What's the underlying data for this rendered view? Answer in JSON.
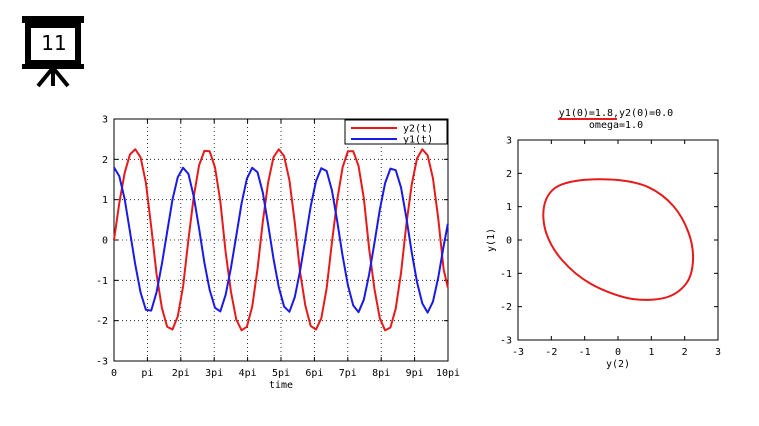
{
  "slide": {
    "number": "11"
  },
  "colors": {
    "y1": "#1a1ae6",
    "y2": "#e61a1a",
    "grid": "#000000"
  },
  "chart_data": [
    {
      "type": "line",
      "title": "",
      "xlabel": "time",
      "ylabel": "",
      "xlim": [
        0,
        31.4159
      ],
      "ylim": [
        -3,
        3
      ],
      "xticks": [
        {
          "value": 0,
          "label": "0"
        },
        {
          "value": 3.14159,
          "label": "pi"
        },
        {
          "value": 6.28319,
          "label": "2pi"
        },
        {
          "value": 9.42478,
          "label": "3pi"
        },
        {
          "value": 12.56637,
          "label": "4pi"
        },
        {
          "value": 15.70796,
          "label": "5pi"
        },
        {
          "value": 18.84956,
          "label": "6pi"
        },
        {
          "value": 21.99115,
          "label": "7pi"
        },
        {
          "value": 25.13274,
          "label": "8pi"
        },
        {
          "value": 28.27433,
          "label": "9pi"
        },
        {
          "value": 31.41593,
          "label": "10pi"
        }
      ],
      "yticks": [
        "-3",
        "-2",
        "-1",
        "0",
        "1",
        "2",
        "3"
      ],
      "grid": true,
      "legend": "top-right",
      "series": [
        {
          "name": "y2(t)",
          "color": "#e61a1a",
          "x": [
            0,
            0.5,
            1,
            1.5,
            2,
            2.5,
            3,
            3.5,
            4,
            4.5,
            5,
            5.5,
            6,
            6.5,
            7,
            7.5,
            8,
            8.5,
            9,
            9.5,
            10,
            10.5,
            11,
            11.5,
            12,
            12.5,
            13,
            13.5,
            14,
            14.5,
            15,
            15.5,
            16,
            16.5,
            17,
            17.5,
            18,
            18.5,
            19,
            19.5,
            20,
            20.5,
            21,
            21.5,
            22,
            22.5,
            23,
            23.5,
            24,
            24.5,
            25,
            25.5,
            26,
            26.5,
            27,
            27.5,
            28,
            28.5,
            29,
            29.5,
            30,
            30.5,
            31,
            31.4
          ],
          "values": [
            0.0,
            0.92,
            1.66,
            2.12,
            2.25,
            2.05,
            1.42,
            0.33,
            -0.84,
            -1.68,
            -2.15,
            -2.22,
            -1.89,
            -1.15,
            0.01,
            1.07,
            1.85,
            2.21,
            2.2,
            1.8,
            0.96,
            -0.3,
            -1.28,
            -1.97,
            -2.24,
            -2.15,
            -1.65,
            -0.72,
            0.46,
            1.43,
            2.05,
            2.25,
            2.08,
            1.48,
            0.44,
            -0.79,
            -1.63,
            -2.13,
            -2.22,
            -1.94,
            -1.2,
            -0.06,
            1.0,
            1.8,
            2.2,
            2.2,
            1.84,
            1.03,
            -0.22,
            -1.22,
            -1.94,
            -2.24,
            -2.17,
            -1.7,
            -0.81,
            0.39,
            1.37,
            2.02,
            2.25,
            2.1,
            1.53,
            0.53,
            -0.72,
            -1.18
          ]
        },
        {
          "name": "y1(t)",
          "color": "#1a1ae6",
          "x": [
            0,
            0.5,
            1,
            1.5,
            2,
            2.5,
            3,
            3.5,
            4,
            4.5,
            5,
            5.5,
            6,
            6.5,
            7,
            7.5,
            8,
            8.5,
            9,
            9.5,
            10,
            10.5,
            11,
            11.5,
            12,
            12.5,
            13,
            13.5,
            14,
            14.5,
            15,
            15.5,
            16,
            16.5,
            17,
            17.5,
            18,
            18.5,
            19,
            19.5,
            20,
            20.5,
            21,
            21.5,
            22,
            22.5,
            23,
            23.5,
            24,
            24.5,
            25,
            25.5,
            26,
            26.5,
            27,
            27.5,
            28,
            28.5,
            29,
            29.5,
            30,
            30.5,
            31,
            31.4
          ],
          "values": [
            1.8,
            1.58,
            1.02,
            0.21,
            -0.61,
            -1.3,
            -1.73,
            -1.75,
            -1.3,
            -0.6,
            0.2,
            1.0,
            1.56,
            1.79,
            1.64,
            1.08,
            0.29,
            -0.56,
            -1.24,
            -1.68,
            -1.77,
            -1.36,
            -0.69,
            0.1,
            0.91,
            1.52,
            1.79,
            1.68,
            1.17,
            0.38,
            -0.46,
            -1.17,
            -1.65,
            -1.78,
            -1.42,
            -0.77,
            0.02,
            0.83,
            1.46,
            1.78,
            1.71,
            1.23,
            0.46,
            -0.39,
            -1.12,
            -1.62,
            -1.79,
            -1.48,
            -0.85,
            -0.07,
            0.75,
            1.41,
            1.77,
            1.73,
            1.3,
            0.55,
            -0.3,
            -1.04,
            -1.57,
            -1.8,
            -1.53,
            -0.93,
            -0.16,
            0.4
          ]
        }
      ]
    },
    {
      "type": "line",
      "title": "y1(0)=1.8,y2(0)=0.0",
      "subtitle": "omega=1.0",
      "xlabel": "y(2)",
      "ylabel": "y(1)",
      "xlim": [
        -3,
        3
      ],
      "ylim": [
        -3,
        3
      ],
      "xticks": [
        "-3",
        "-2",
        "-1",
        "0",
        "1",
        "2",
        "3"
      ],
      "yticks": [
        "-3",
        "-2",
        "-1",
        "0",
        "1",
        "2",
        "3"
      ],
      "grid": false,
      "series": [
        {
          "color": "#e61a1a",
          "x": [
            0.0,
            0.92,
            1.66,
            2.12,
            2.25,
            2.05,
            1.42,
            0.33,
            -0.84,
            -1.68,
            -2.15,
            -2.22,
            -1.89,
            -1.15,
            0.0
          ],
          "values": [
            1.8,
            1.58,
            1.02,
            0.21,
            -0.61,
            -1.3,
            -1.73,
            -1.75,
            -1.3,
            -0.6,
            0.2,
            1.0,
            1.56,
            1.79,
            1.8
          ]
        }
      ]
    }
  ]
}
